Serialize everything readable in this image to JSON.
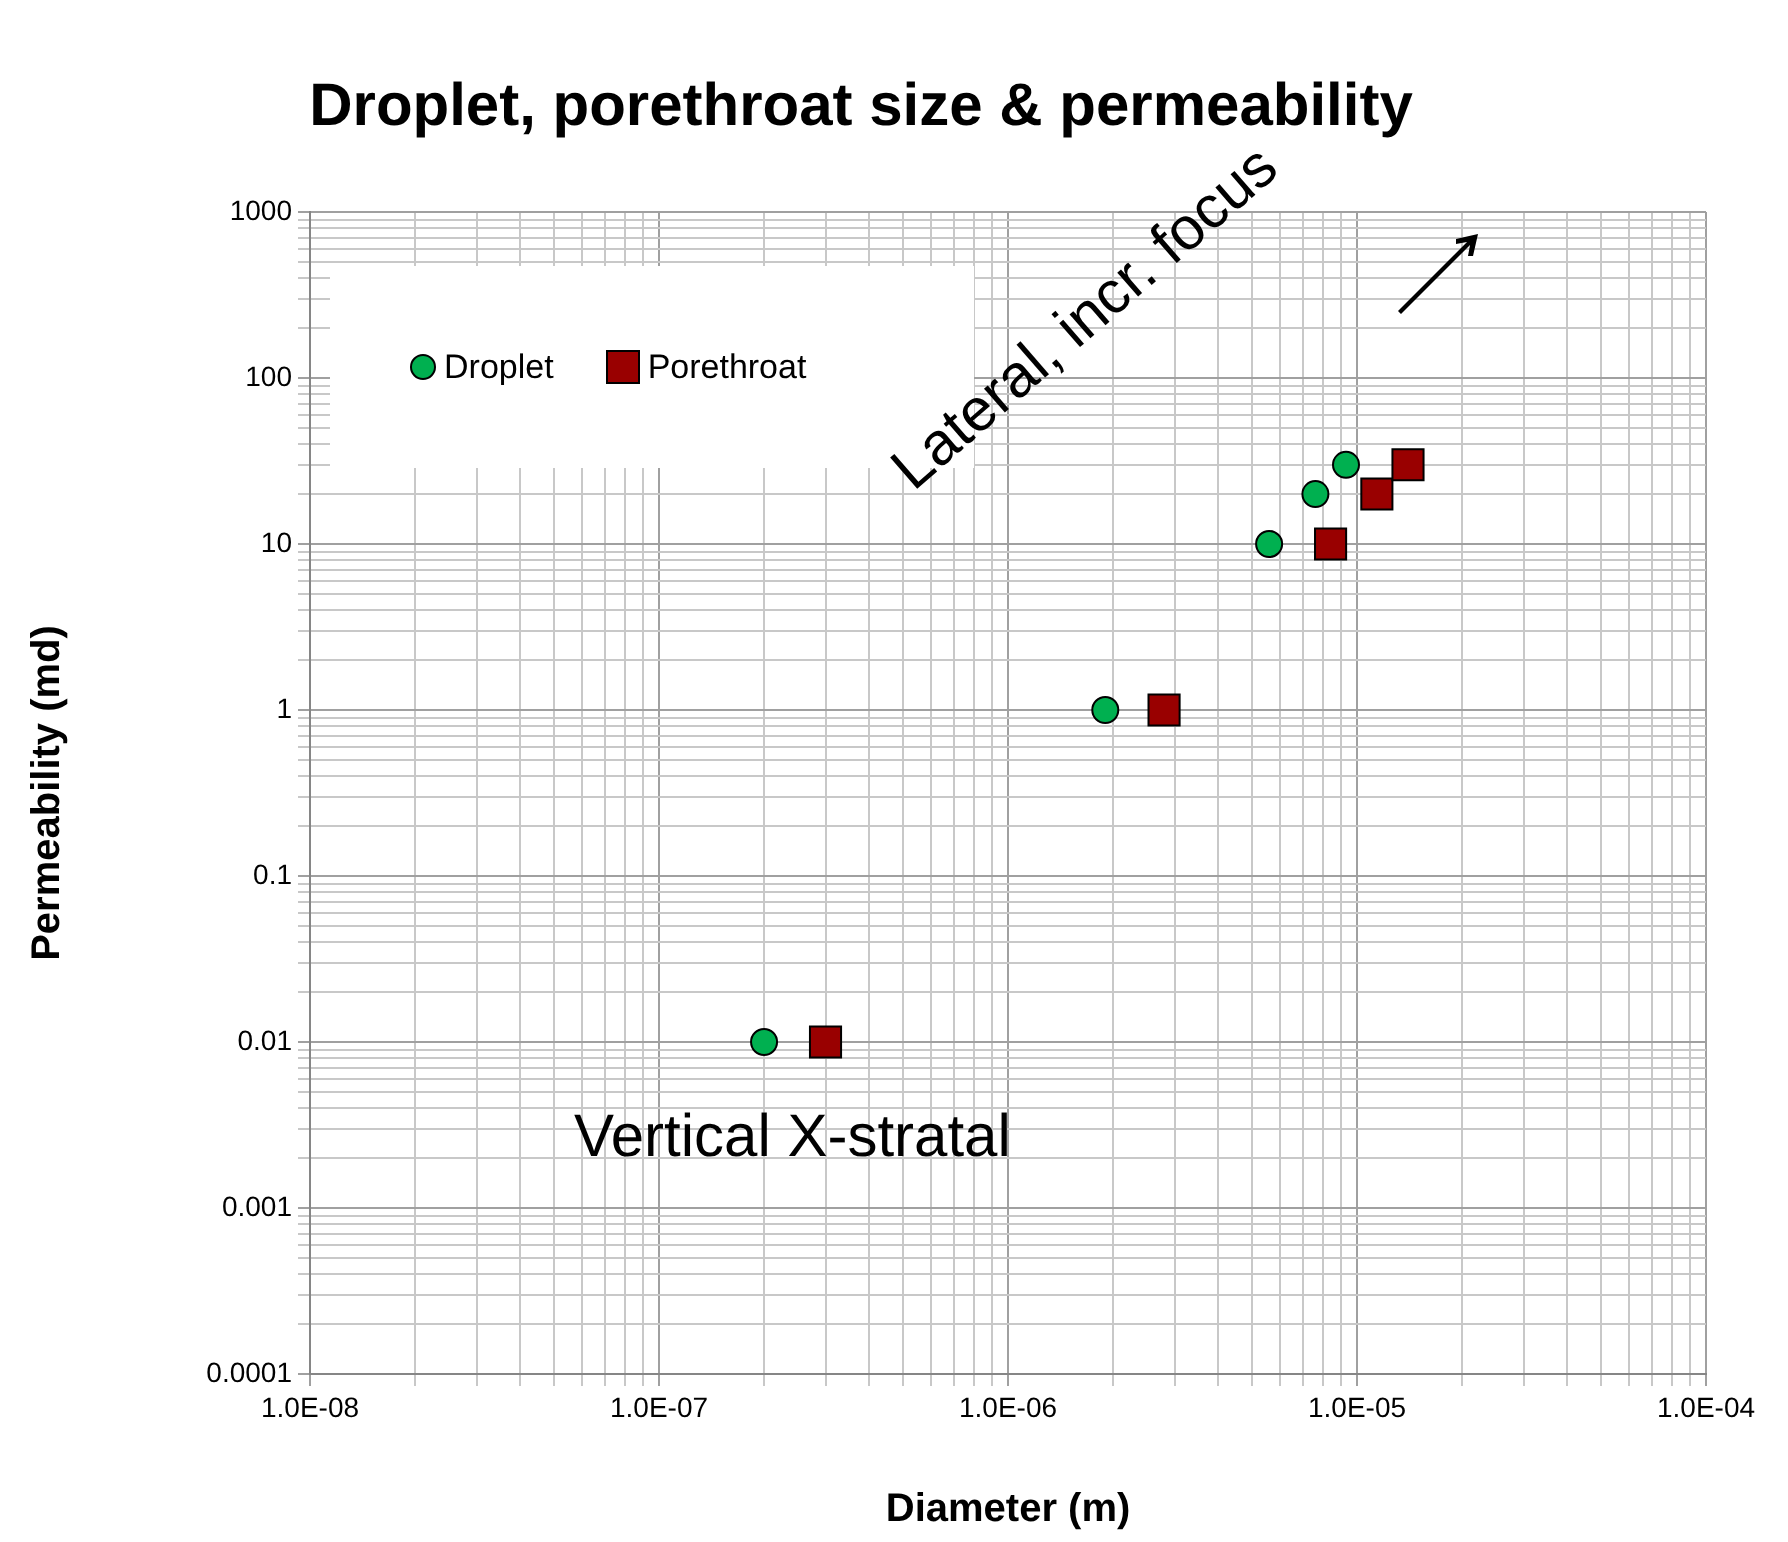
{
  "chart_data": {
    "type": "scatter",
    "title": "Droplet, porethroat size & permeability",
    "xlabel": "Diameter (m)",
    "ylabel": "Permeability (md)",
    "log": "xy",
    "grid": true,
    "legend": "top left",
    "xlim": [
      1e-08,
      0.0001
    ],
    "xticks": [
      {
        "value": 1e-08,
        "label": "1.0E-08"
      },
      {
        "value": 1e-07,
        "label": "1.0E-07"
      },
      {
        "value": 1e-06,
        "label": "1.0E-06"
      },
      {
        "value": 1e-05,
        "label": "1.0E-05"
      },
      {
        "value": 0.0001,
        "label": "1.0E-04"
      }
    ],
    "ylim": [
      0.0001,
      1000
    ],
    "yticks": [
      0.0001,
      0.001,
      0.01,
      0.1,
      1,
      10,
      100,
      1000
    ],
    "annotations": [
      "Lateral, incr. focus",
      "Vertical X-stratal"
    ],
    "series": [
      {
        "name": "Droplet",
        "color": "#00b050",
        "marker": "circle",
        "x": [
          2e-07,
          1.9e-06,
          5.6e-06,
          7.6e-06,
          9.3e-06
        ],
        "values": [
          0.01,
          1,
          10,
          20,
          30
        ]
      },
      {
        "name": "Porethroat",
        "color": "#990000",
        "marker": "square",
        "x": [
          3e-07,
          2.8e-06,
          8.4e-06,
          1.14e-05,
          1.4e-05
        ],
        "values": [
          0.01,
          1,
          10,
          20,
          30
        ]
      }
    ]
  }
}
